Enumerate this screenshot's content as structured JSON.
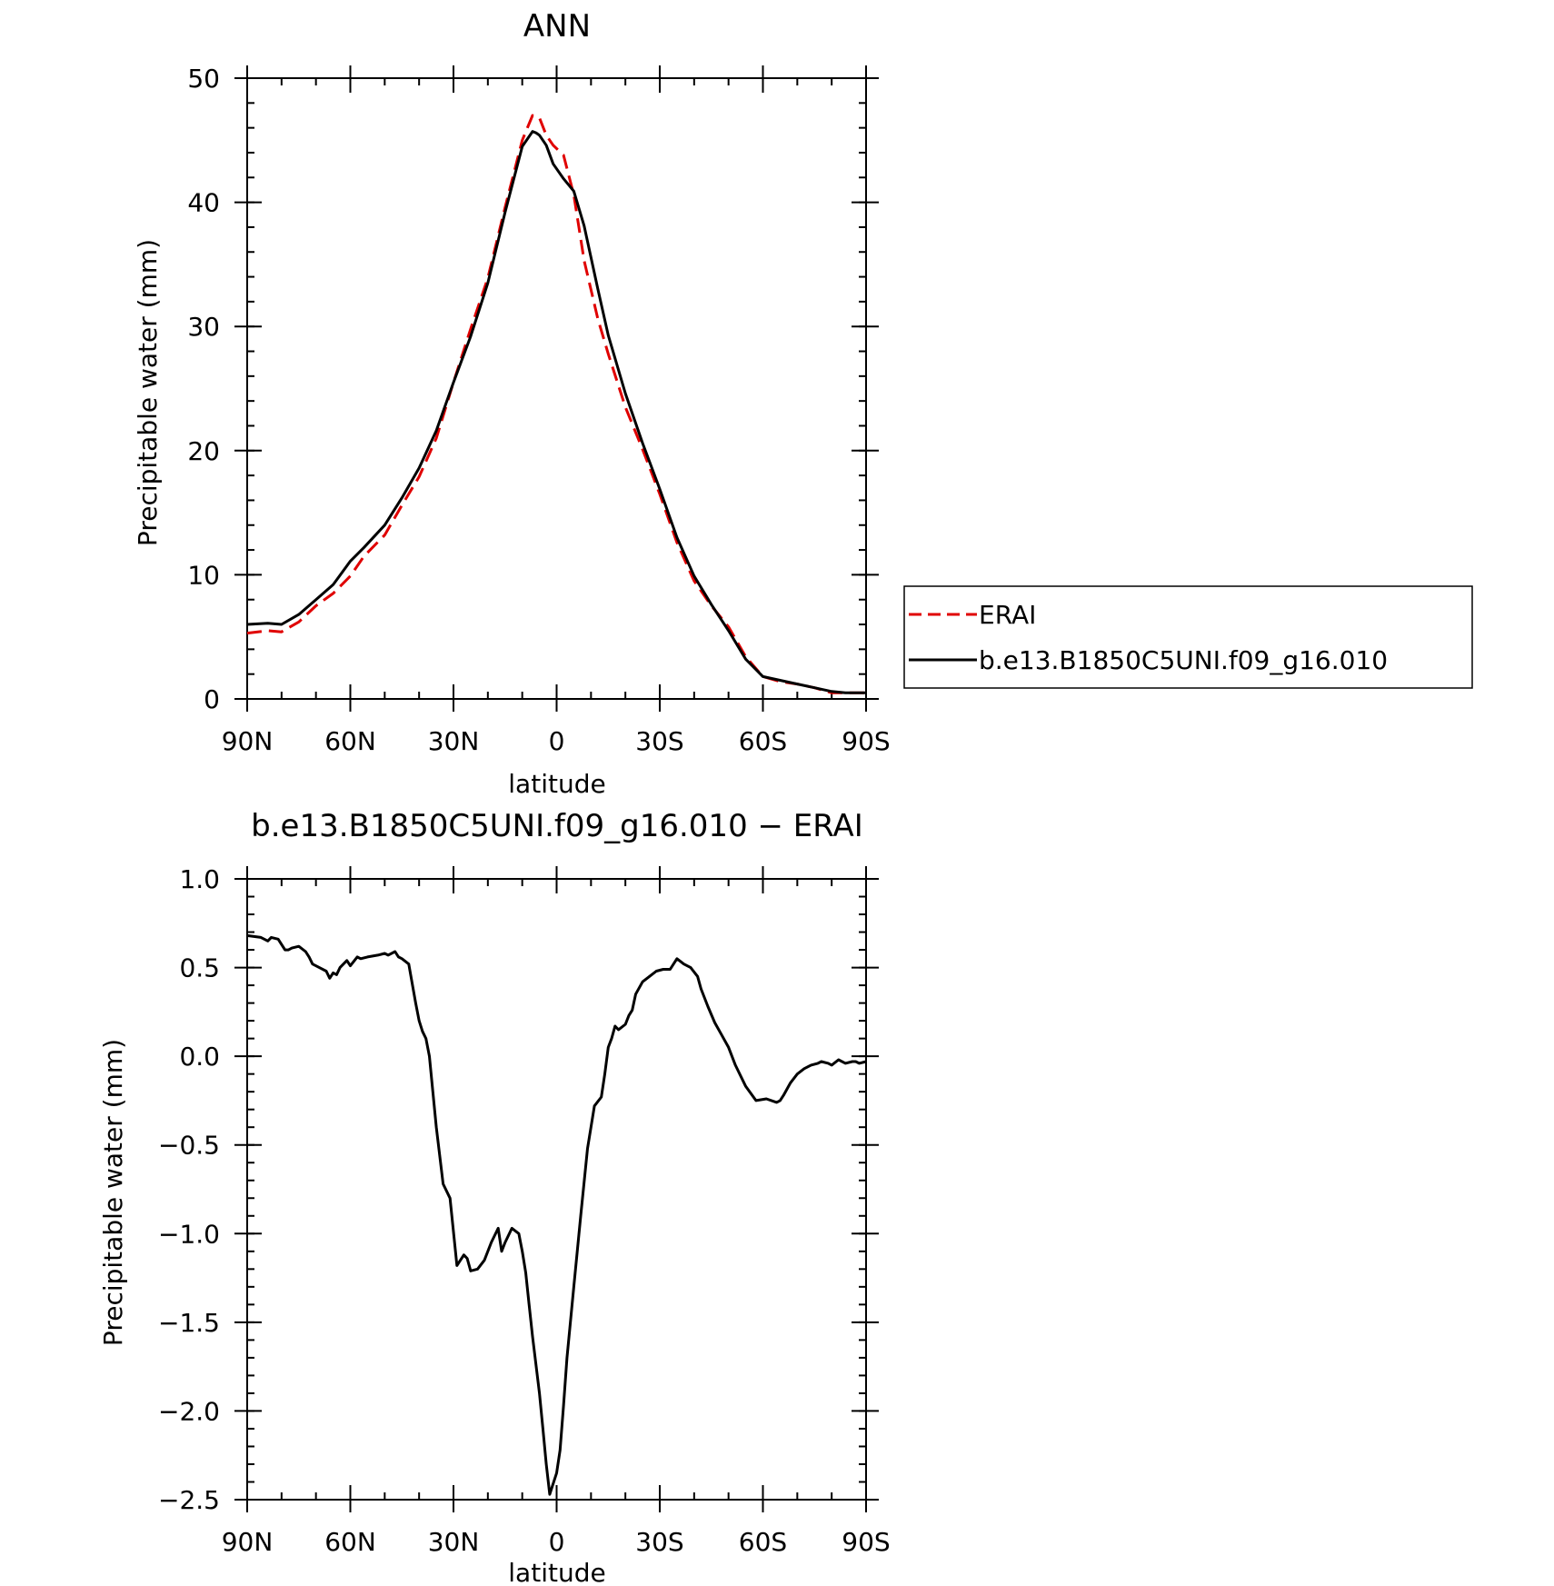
{
  "chart_data": [
    {
      "type": "line",
      "title": "ANN",
      "xlabel": "latitude",
      "ylabel": "Precipitable water (mm)",
      "xlim": [
        90,
        -90
      ],
      "ylim": [
        0,
        50
      ],
      "x_ticks": [
        {
          "value": 90,
          "label": "90N"
        },
        {
          "value": 60,
          "label": "60N"
        },
        {
          "value": 30,
          "label": "30N"
        },
        {
          "value": 0,
          "label": "0"
        },
        {
          "value": -30,
          "label": "30S"
        },
        {
          "value": -60,
          "label": "60S"
        },
        {
          "value": -90,
          "label": "90S"
        }
      ],
      "y_ticks": [
        {
          "value": 0,
          "label": "0"
        },
        {
          "value": 10,
          "label": "10"
        },
        {
          "value": 20,
          "label": "20"
        },
        {
          "value": 30,
          "label": "30"
        },
        {
          "value": 40,
          "label": "40"
        },
        {
          "value": 50,
          "label": "50"
        }
      ],
      "legend": {
        "position": "right",
        "entries": [
          {
            "name": "ERAI",
            "color": "#e00000",
            "dash": "dashed"
          },
          {
            "name": "b.e13.B1850C5UNI.f09_g16.010",
            "color": "#000000",
            "dash": "solid"
          }
        ]
      },
      "series": [
        {
          "name": "ERAI",
          "color": "#e00000",
          "dash": "dashed",
          "x": [
            90,
            84,
            80,
            75,
            70,
            65,
            60,
            56,
            50,
            45,
            40,
            35,
            30,
            25,
            20,
            15,
            10,
            7,
            5,
            3,
            1,
            -2,
            -5,
            -8,
            -12,
            -15,
            -20,
            -25,
            -30,
            -35,
            -40,
            -45,
            -50,
            -55,
            -60,
            -65,
            -70,
            -75,
            -80,
            -84,
            -88,
            -90
          ],
          "y": [
            5.3,
            5.5,
            5.4,
            6.2,
            7.5,
            8.5,
            9.9,
            11.5,
            13.2,
            15.6,
            17.9,
            21.0,
            25.5,
            29.8,
            33.9,
            39.6,
            45.0,
            47.0,
            46.8,
            45.4,
            44.6,
            43.8,
            40.6,
            35.3,
            30.6,
            27.8,
            23.5,
            20.1,
            16.5,
            12.6,
            9.5,
            7.5,
            5.8,
            3.4,
            1.8,
            1.4,
            1.2,
            0.9,
            0.5,
            0.5,
            0.5,
            0.5
          ]
        },
        {
          "name": "b.e13.B1850C5UNI.f09_g16.010",
          "color": "#000000",
          "dash": "solid",
          "x": [
            90,
            84,
            80,
            75,
            70,
            65,
            60,
            56,
            50,
            45,
            40,
            35,
            30,
            25,
            20,
            15,
            10,
            7,
            6,
            5,
            3,
            1,
            -2,
            -5,
            -8,
            -12,
            -15,
            -20,
            -25,
            -30,
            -35,
            -40,
            -45,
            -50,
            -55,
            -60,
            -65,
            -70,
            -75,
            -80,
            -84,
            -88,
            -90
          ],
          "y": [
            6.0,
            6.1,
            6.0,
            6.8,
            8.0,
            9.2,
            11.1,
            12.2,
            14.0,
            16.2,
            18.6,
            21.6,
            25.5,
            29.2,
            33.5,
            39.2,
            44.5,
            45.7,
            45.6,
            45.4,
            44.6,
            43.1,
            41.9,
            40.9,
            38.1,
            33.0,
            29.3,
            24.6,
            20.6,
            16.9,
            13.0,
            9.9,
            7.6,
            5.5,
            3.2,
            1.8,
            1.5,
            1.2,
            0.9,
            0.6,
            0.5,
            0.5,
            0.5
          ]
        }
      ]
    },
    {
      "type": "line",
      "title": "b.e13.B1850C5UNI.f09_g16.010 − ERAI",
      "xlabel": "latitude",
      "ylabel": "Precipitable water (mm)",
      "xlim": [
        90,
        -90
      ],
      "ylim": [
        -2.5,
        1.0
      ],
      "x_ticks": [
        {
          "value": 90,
          "label": "90N"
        },
        {
          "value": 60,
          "label": "60N"
        },
        {
          "value": 30,
          "label": "30N"
        },
        {
          "value": 0,
          "label": "0"
        },
        {
          "value": -30,
          "label": "30S"
        },
        {
          "value": -60,
          "label": "60S"
        },
        {
          "value": -90,
          "label": "90S"
        }
      ],
      "y_ticks": [
        {
          "value": 1.0,
          "label": "1.0"
        },
        {
          "value": 0.5,
          "label": "0.5"
        },
        {
          "value": 0.0,
          "label": "0.0"
        },
        {
          "value": -0.5,
          "label": "−0.5"
        },
        {
          "value": -1.0,
          "label": "−1.0"
        },
        {
          "value": -1.5,
          "label": "−1.5"
        },
        {
          "value": -2.0,
          "label": "−2.0"
        },
        {
          "value": -2.5,
          "label": "−2.5"
        }
      ],
      "series": [
        {
          "name": "",
          "color": "#000000",
          "dash": "solid",
          "x": [
            90,
            86,
            84,
            83,
            81,
            79,
            78,
            77,
            75,
            73,
            72,
            71,
            69,
            67,
            66,
            65,
            64,
            63,
            62,
            61,
            60,
            58,
            57,
            55,
            52,
            50,
            49,
            47,
            46,
            45,
            43,
            41,
            40,
            39,
            38,
            37,
            36,
            35,
            33,
            31,
            29,
            28,
            27,
            26,
            25,
            23,
            21,
            19,
            17,
            16,
            15,
            13,
            11,
            10,
            9,
            8,
            7,
            5,
            4,
            3,
            2,
            0,
            -1,
            -2,
            -3,
            -5,
            -7,
            -9,
            -11,
            -13,
            -14,
            -15,
            -16,
            -17,
            -18,
            -20,
            -21,
            -22,
            -23,
            -25,
            -27,
            -29,
            -31,
            -33,
            -35,
            -37,
            -39,
            -41,
            -42,
            -44,
            -46,
            -48,
            -50,
            -52,
            -55,
            -58,
            -61,
            -64,
            -65,
            -66,
            -68,
            -70,
            -72,
            -74,
            -76,
            -77,
            -79,
            -80,
            -82,
            -84,
            -86,
            -87,
            -88,
            -90
          ],
          "y": [
            0.68,
            0.67,
            0.65,
            0.67,
            0.66,
            0.6,
            0.6,
            0.61,
            0.62,
            0.59,
            0.56,
            0.52,
            0.5,
            0.48,
            0.44,
            0.47,
            0.46,
            0.5,
            0.52,
            0.54,
            0.51,
            0.56,
            0.55,
            0.56,
            0.57,
            0.58,
            0.57,
            0.59,
            0.56,
            0.55,
            0.52,
            0.3,
            0.2,
            0.14,
            0.1,
            0.0,
            -0.2,
            -0.4,
            -0.72,
            -0.8,
            -1.18,
            -1.15,
            -1.12,
            -1.14,
            -1.21,
            -1.2,
            -1.15,
            -1.05,
            -0.97,
            -1.1,
            -1.05,
            -0.97,
            -1.0,
            -1.1,
            -1.22,
            -1.4,
            -1.58,
            -1.9,
            -2.1,
            -2.3,
            -2.47,
            -2.35,
            -2.22,
            -1.97,
            -1.7,
            -1.3,
            -0.9,
            -0.52,
            -0.28,
            -0.23,
            -0.1,
            0.05,
            0.1,
            0.17,
            0.15,
            0.18,
            0.23,
            0.26,
            0.35,
            0.42,
            0.45,
            0.48,
            0.49,
            0.49,
            0.55,
            0.52,
            0.5,
            0.45,
            0.38,
            0.28,
            0.19,
            0.12,
            0.05,
            -0.05,
            -0.17,
            -0.25,
            -0.24,
            -0.26,
            -0.25,
            -0.22,
            -0.15,
            -0.1,
            -0.07,
            -0.05,
            -0.04,
            -0.03,
            -0.04,
            -0.05,
            -0.02,
            -0.04,
            -0.03,
            -0.03,
            -0.04,
            -0.03
          ]
        }
      ]
    }
  ]
}
